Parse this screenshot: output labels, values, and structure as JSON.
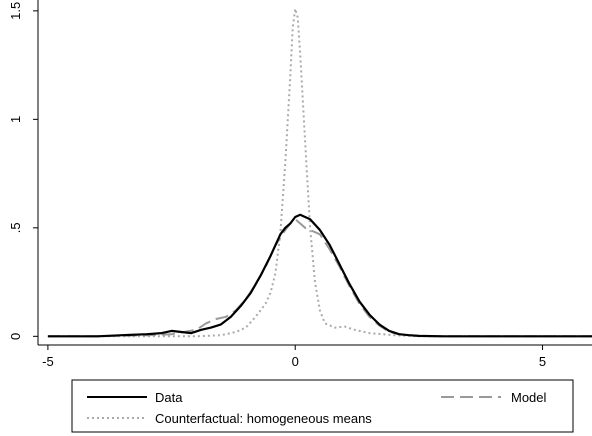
{
  "chart_data": {
    "type": "line",
    "title": "",
    "xlabel": "",
    "ylabel": "",
    "xlim": [
      -5.2,
      6
    ],
    "ylim": [
      -0.04,
      1.55
    ],
    "xticks": [
      -5,
      0,
      5
    ],
    "xtick_labels": [
      "-5",
      "0",
      "5"
    ],
    "yticks": [
      0,
      0.5,
      1,
      1.5
    ],
    "ytick_labels": [
      "0",
      ".5",
      "1",
      "1.5"
    ],
    "grid": false,
    "legend": {
      "position": "bottom",
      "columns": 2
    },
    "series": [
      {
        "name": "Data",
        "color": "#000000",
        "style": "solid",
        "x": [
          -5.0,
          -4.0,
          -3.5,
          -3.0,
          -2.7,
          -2.5,
          -2.3,
          -2.1,
          -1.9,
          -1.7,
          -1.5,
          -1.3,
          -1.1,
          -0.9,
          -0.7,
          -0.5,
          -0.3,
          -0.2,
          -0.1,
          0.0,
          0.1,
          0.2,
          0.3,
          0.5,
          0.7,
          0.9,
          1.1,
          1.3,
          1.5,
          1.7,
          1.9,
          2.1,
          2.3,
          2.5,
          3.0,
          4.0,
          5.0,
          6.0
        ],
        "y": [
          0.0,
          0.0,
          0.005,
          0.01,
          0.015,
          0.025,
          0.02,
          0.015,
          0.03,
          0.04,
          0.055,
          0.09,
          0.14,
          0.2,
          0.28,
          0.37,
          0.47,
          0.5,
          0.52,
          0.55,
          0.56,
          0.55,
          0.54,
          0.49,
          0.42,
          0.33,
          0.24,
          0.16,
          0.1,
          0.055,
          0.025,
          0.01,
          0.005,
          0.002,
          0.0,
          0.0,
          0.0,
          0.0
        ]
      },
      {
        "name": "Model",
        "color": "#999999",
        "style": "dash",
        "x": [
          -5.0,
          -4.0,
          -3.0,
          -2.5,
          -2.0,
          -1.8,
          -1.6,
          -1.4,
          -1.2,
          -1.0,
          -0.8,
          -0.6,
          -0.4,
          -0.2,
          -0.1,
          0.0,
          0.1,
          0.2,
          0.3,
          0.5,
          0.7,
          0.9,
          1.1,
          1.3,
          1.5,
          1.7,
          1.9,
          2.1,
          2.3,
          2.5,
          3.0,
          4.0,
          5.0,
          6.0
        ],
        "y": [
          0.0,
          0.0,
          0.005,
          0.01,
          0.03,
          0.06,
          0.08,
          0.09,
          0.12,
          0.17,
          0.24,
          0.32,
          0.42,
          0.49,
          0.52,
          0.54,
          0.52,
          0.5,
          0.49,
          0.47,
          0.4,
          0.32,
          0.23,
          0.15,
          0.09,
          0.05,
          0.02,
          0.01,
          0.005,
          0.002,
          0.0,
          0.0,
          0.0,
          0.0
        ]
      },
      {
        "name": "Counterfactual: homogeneous means",
        "color": "#aaaaaa",
        "style": "dot",
        "x": [
          -5.0,
          -3.0,
          -2.0,
          -1.5,
          -1.2,
          -1.0,
          -0.8,
          -0.6,
          -0.5,
          -0.4,
          -0.3,
          -0.2,
          -0.1,
          -0.05,
          0.0,
          0.05,
          0.1,
          0.2,
          0.3,
          0.4,
          0.5,
          0.6,
          0.8,
          1.0,
          1.2,
          1.5,
          2.0,
          2.5,
          3.0,
          4.0,
          5.0,
          6.0
        ],
        "y": [
          0.0,
          0.0,
          0.0,
          0.005,
          0.02,
          0.04,
          0.09,
          0.15,
          0.2,
          0.29,
          0.48,
          0.8,
          1.2,
          1.42,
          1.51,
          1.47,
          1.3,
          0.9,
          0.5,
          0.25,
          0.12,
          0.06,
          0.04,
          0.045,
          0.03,
          0.015,
          0.005,
          0.0,
          0.0,
          0.0,
          0.0,
          0.0
        ]
      }
    ]
  }
}
